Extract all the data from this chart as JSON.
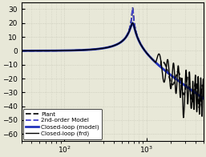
{
  "title": "",
  "xlim": [
    30,
    5000
  ],
  "ylim": [
    -65,
    35
  ],
  "yticks": [
    -60,
    -50,
    -40,
    -30,
    -20,
    -10,
    0,
    10,
    20,
    30
  ],
  "ylabel": "",
  "xlabel": "",
  "background_color": "#e8e8d8",
  "grid_color": "#c8c8b8",
  "legend_entries": [
    "Plant",
    "2nd-order Model",
    "Closed-loop (model)",
    "Closed-loop (frd)"
  ],
  "legend_styles": [
    {
      "color": "#111111",
      "linestyle": "--",
      "linewidth": 1.3
    },
    {
      "color": "#4444cc",
      "linestyle": "--",
      "linewidth": 1.3
    },
    {
      "color": "#2233bb",
      "linestyle": "-",
      "linewidth": 2.0
    },
    {
      "color": "#000000",
      "linestyle": "-",
      "linewidth": 1.0
    }
  ],
  "f_start": 30,
  "f_end": 5000,
  "f_resonance": 680,
  "Q_plant": 35,
  "Q_model": 35
}
